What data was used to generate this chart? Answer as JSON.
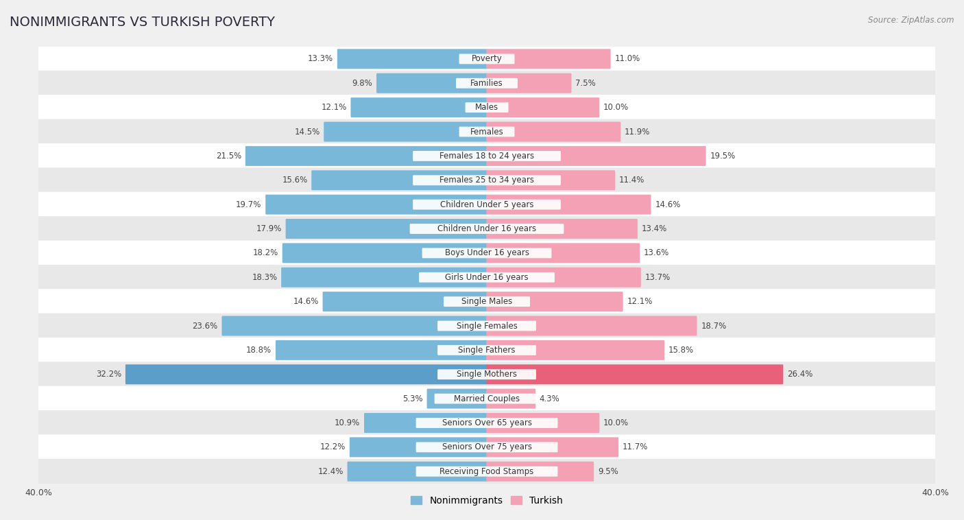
{
  "title": "NONIMMIGRANTS VS TURKISH POVERTY",
  "source": "Source: ZipAtlas.com",
  "categories": [
    "Poverty",
    "Families",
    "Males",
    "Females",
    "Females 18 to 24 years",
    "Females 25 to 34 years",
    "Children Under 5 years",
    "Children Under 16 years",
    "Boys Under 16 years",
    "Girls Under 16 years",
    "Single Males",
    "Single Females",
    "Single Fathers",
    "Single Mothers",
    "Married Couples",
    "Seniors Over 65 years",
    "Seniors Over 75 years",
    "Receiving Food Stamps"
  ],
  "nonimmigrant_values": [
    13.3,
    9.8,
    12.1,
    14.5,
    21.5,
    15.6,
    19.7,
    17.9,
    18.2,
    18.3,
    14.6,
    23.6,
    18.8,
    32.2,
    5.3,
    10.9,
    12.2,
    12.4
  ],
  "turkish_values": [
    11.0,
    7.5,
    10.0,
    11.9,
    19.5,
    11.4,
    14.6,
    13.4,
    13.6,
    13.7,
    12.1,
    18.7,
    15.8,
    26.4,
    4.3,
    10.0,
    11.7,
    9.5
  ],
  "nonimmigrant_color": "#7ab8d9",
  "turkish_color": "#f4a0b5",
  "nonimmigrant_highlight_color": "#5a9ec9",
  "turkish_highlight_color": "#e8607a",
  "highlight_indices": [
    13
  ],
  "axis_limit": 40.0,
  "background_color": "#f0f0f0",
  "row_bg_light": "#ffffff",
  "row_bg_dark": "#e8e8e8",
  "bar_height": 0.72,
  "title_fontsize": 14,
  "label_fontsize": 8.5,
  "value_fontsize": 8.5,
  "legend_fontsize": 10
}
